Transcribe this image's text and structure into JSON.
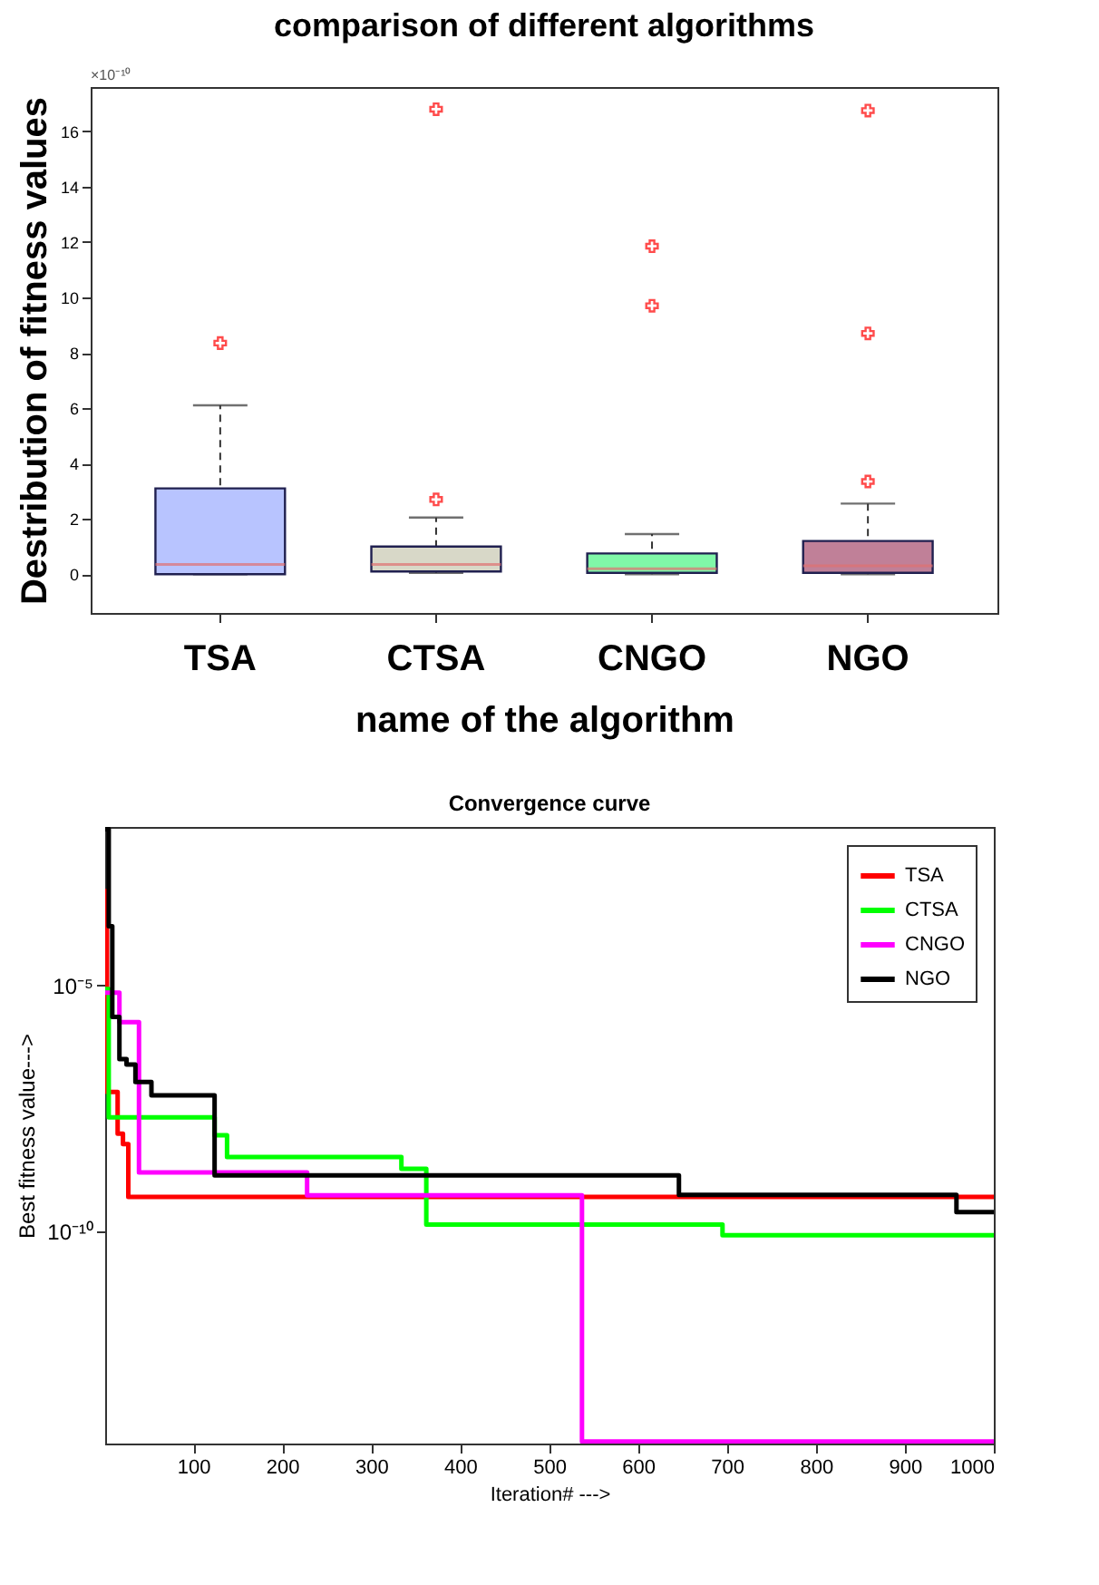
{
  "chart_data": [
    {
      "type": "box",
      "title": "comparison of different algorithms",
      "xlabel": "name of the algorithm",
      "ylabel": "Destribution of fitness values",
      "annotations": [
        "×10⁻¹⁰"
      ],
      "categories": [
        "TSA",
        "CTSA",
        "CNGO",
        "NGO"
      ],
      "colors": [
        "#b8c4ff",
        "#d8d8c8",
        "#80f8a8",
        "#c08098"
      ],
      "boxes": [
        {
          "low": 0,
          "q1": 0,
          "median": 0.35,
          "q3": 3.1,
          "high": 6.1,
          "outliers": [
            8.35
          ]
        },
        {
          "low": 0.05,
          "q1": 0.1,
          "median": 0.35,
          "q3": 1.0,
          "high": 2.05,
          "outliers": [
            2.7,
            16.8
          ]
        },
        {
          "low": 0,
          "q1": 0.05,
          "median": 0.2,
          "q3": 0.75,
          "high": 1.45,
          "outliers": [
            9.7,
            11.85
          ]
        },
        {
          "low": 0,
          "q1": 0.05,
          "median": 0.3,
          "q3": 1.2,
          "high": 2.55,
          "outliers": [
            3.35,
            8.7,
            16.75
          ]
        }
      ],
      "ylim": [
        -1.4,
        17.6
      ],
      "yticks": [
        0,
        2,
        4,
        6,
        8,
        10,
        12,
        14,
        16
      ],
      "grid": false
    },
    {
      "type": "step",
      "title": "Convergence curve",
      "xlabel": "Iteration# --->",
      "ylabel": "Best fitness value--->",
      "log": "y",
      "legend": "top right",
      "grid": false,
      "xlim": [
        1,
        1000
      ],
      "xticks": [
        100,
        200,
        300,
        400,
        500,
        600,
        700,
        800,
        900,
        1000
      ],
      "ylim": [
        5e-15,
        0.0166
      ],
      "yticks": [
        {
          "value": 1e-05,
          "label": "10⁻⁵"
        },
        {
          "value": 1e-10,
          "label": "10⁻¹⁰"
        }
      ],
      "series": [
        {
          "name": "TSA",
          "color": "#ff0000",
          "x": [
            1,
            3,
            12,
            15,
            21,
            27,
            1000
          ],
          "values": [
            0.00083,
            6.9e-08,
            6.9e-08,
            9.8e-09,
            6e-09,
            5.1e-10,
            5.1e-10
          ]
        },
        {
          "name": "CTSA",
          "color": "#00ff00",
          "x": [
            1,
            5,
            124,
            138,
            334,
            362,
            695,
            1000
          ],
          "values": [
            8.5e-06,
            2.1e-08,
            9.1e-09,
            3.3e-09,
            1.9e-09,
            1.4e-10,
            8.5e-11,
            8.5e-11
          ]
        },
        {
          "name": "CNGO",
          "color": "#ff00ff",
          "x": [
            1,
            17,
            39,
            228,
            537,
            1000
          ],
          "values": [
            7.2e-06,
            1.8e-06,
            1.6e-09,
            5.5e-10,
            5.5e-15,
            5.5e-15
          ]
        },
        {
          "name": "NGO",
          "color": "#000000",
          "x": [
            1,
            5,
            9,
            17,
            25,
            35,
            53,
            124,
            646,
            958,
            1000
          ],
          "values": [
            0.015,
            0.00016,
            2.3e-06,
            3.2e-07,
            2.5e-07,
            1.1e-07,
            5.9e-08,
            1.4e-09,
            5.6e-10,
            2.5e-10,
            2.5e-10
          ]
        }
      ]
    }
  ]
}
